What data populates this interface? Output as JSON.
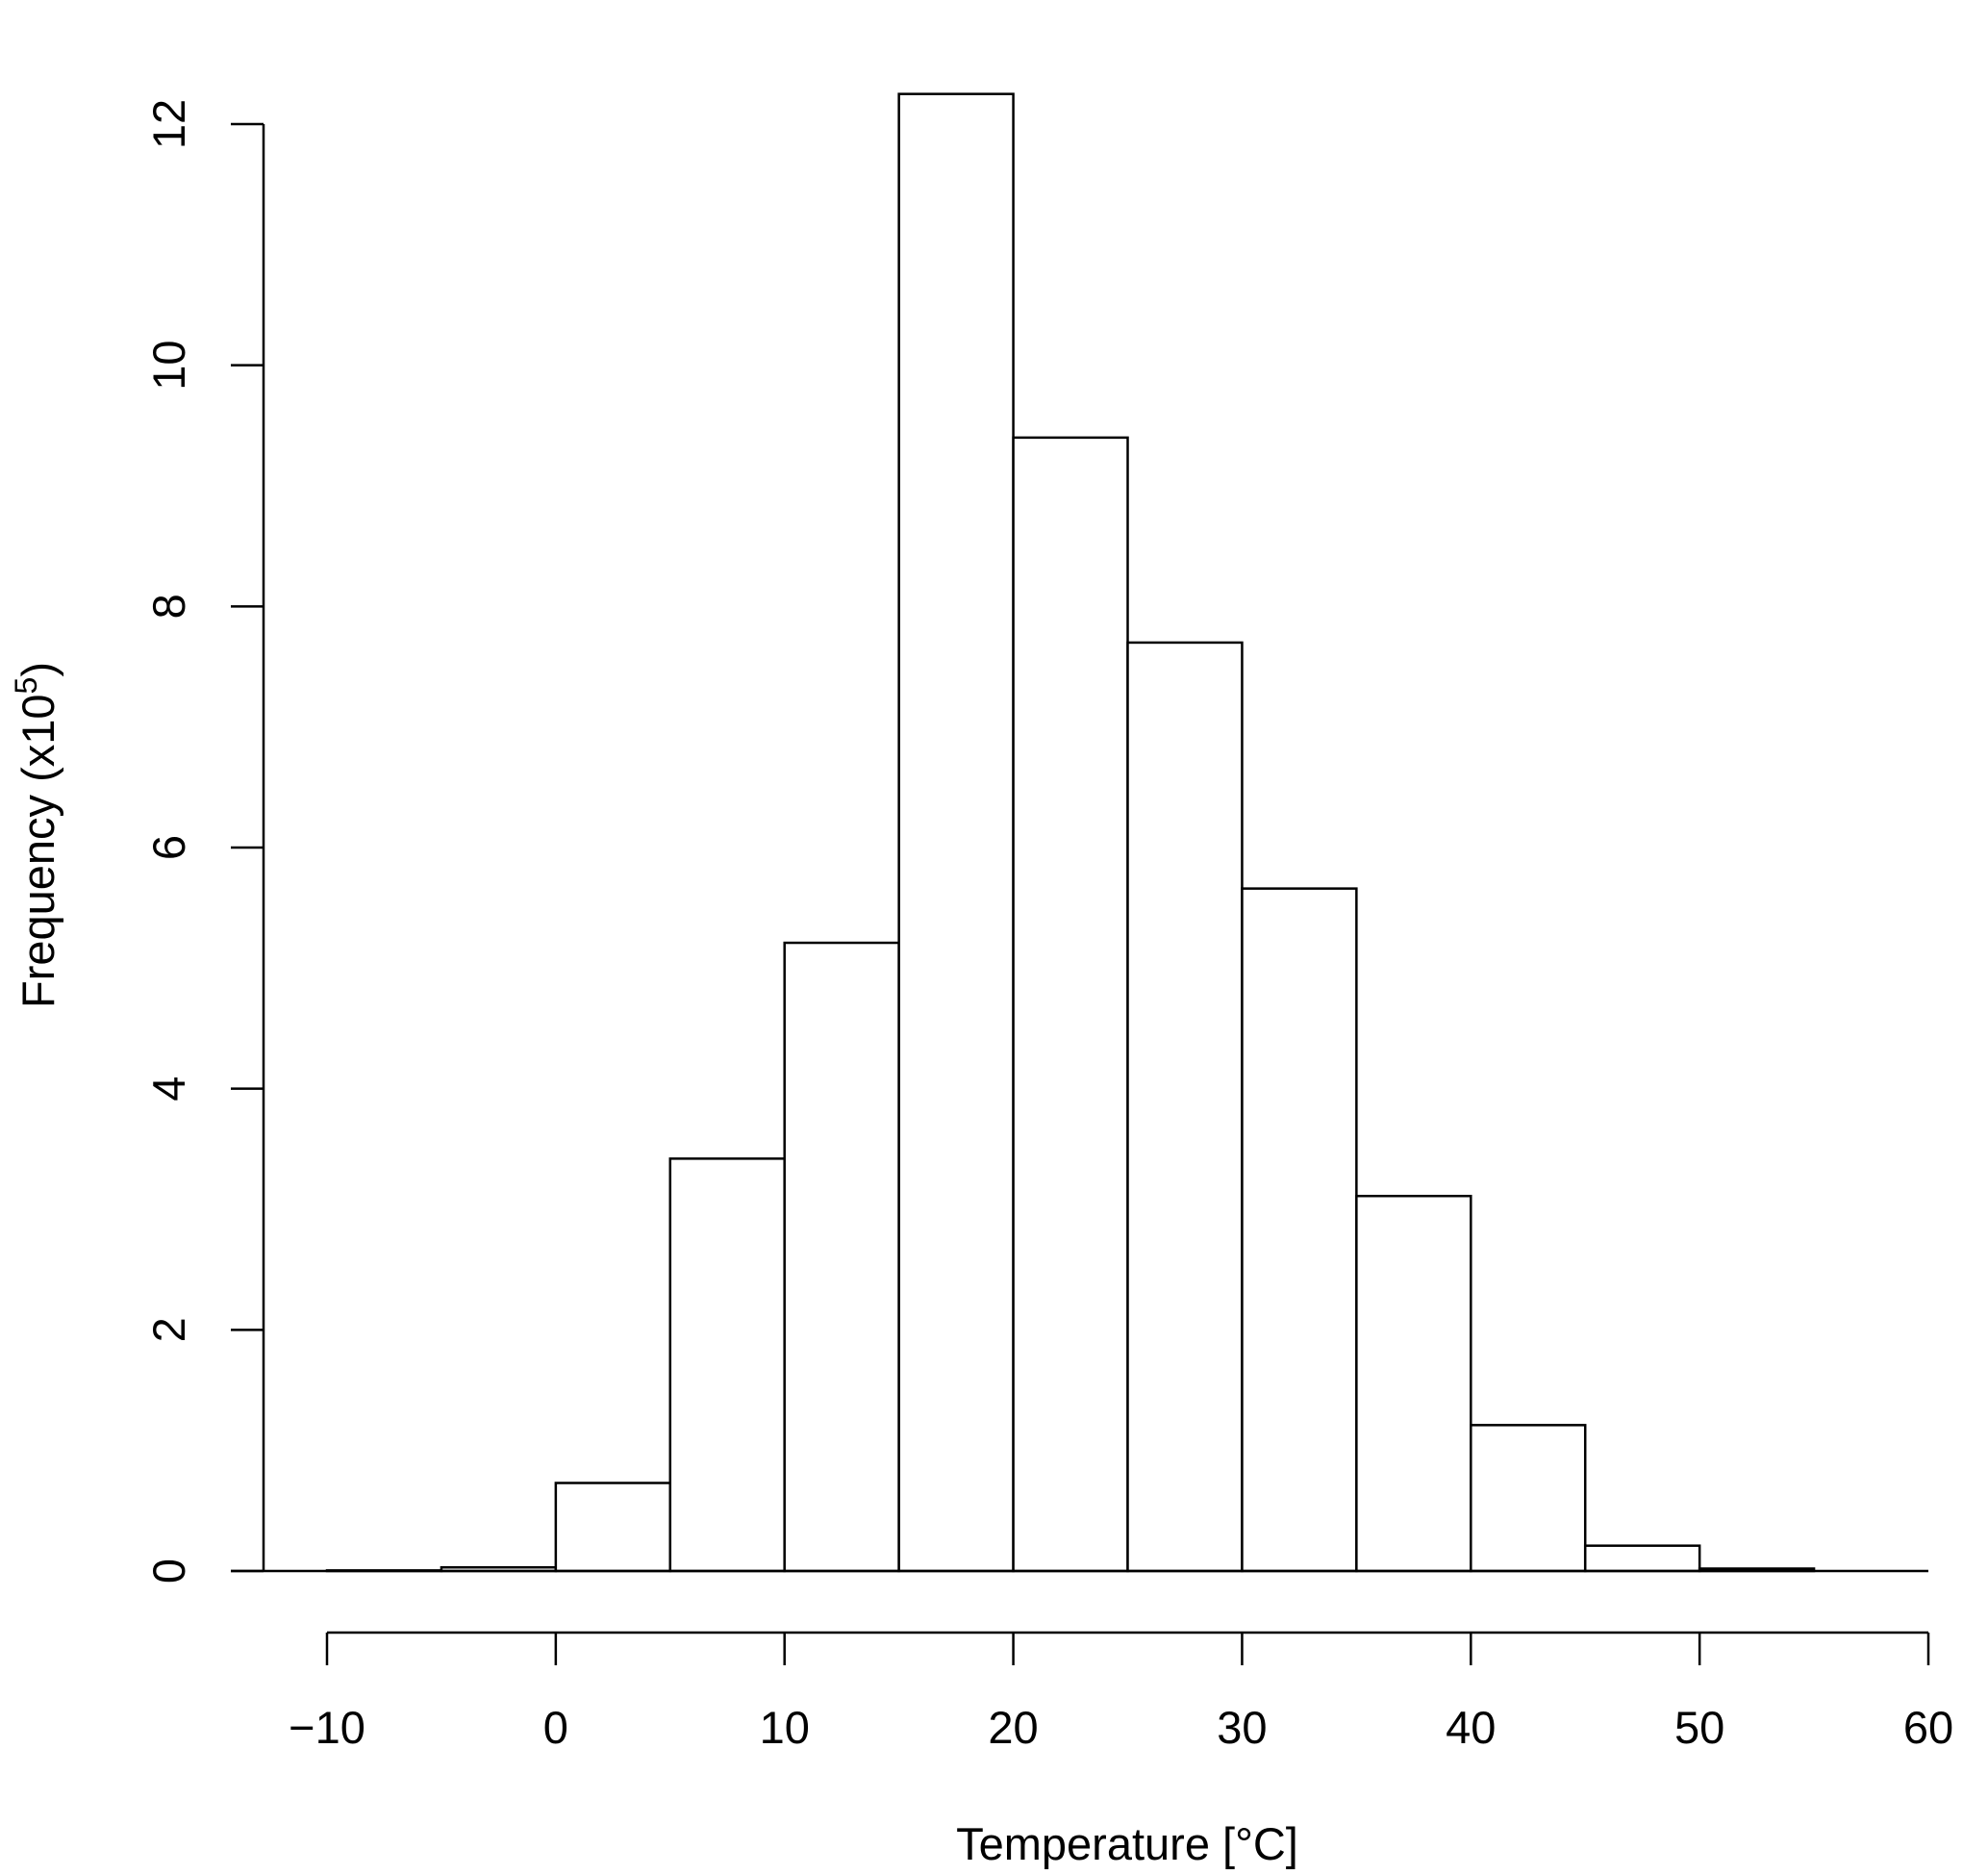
{
  "chart_data": {
    "type": "bar",
    "title": "",
    "xlabel": "Temperature [°C]",
    "ylabel": "Frequency (x10",
    "ylabel_superscript": "5",
    "ylabel_close": ")",
    "bin_edges": [
      -10,
      -5,
      0,
      5,
      10,
      15,
      20,
      25,
      30,
      35,
      40,
      45,
      50,
      55,
      60
    ],
    "values": [
      0.005,
      0.03,
      0.73,
      3.42,
      5.21,
      12.25,
      9.4,
      7.7,
      5.66,
      3.11,
      1.21,
      0.21,
      0.02,
      0.0
    ],
    "xlim": [
      -10,
      60
    ],
    "ylim": [
      0,
      12.3
    ],
    "x_ticks": [
      -10,
      0,
      10,
      20,
      30,
      40,
      50,
      60
    ],
    "x_tick_labels": [
      "−10",
      "0",
      "10",
      "20",
      "30",
      "40",
      "50",
      "60"
    ],
    "y_ticks": [
      0,
      2,
      4,
      6,
      8,
      10,
      12
    ],
    "y_tick_labels": [
      "0",
      "2",
      "4",
      "6",
      "8",
      "10",
      "12"
    ],
    "grid": false,
    "legend": "none",
    "colors": {
      "bar_fill": "#ffffff",
      "bar_stroke": "#000000",
      "axis": "#000000"
    }
  }
}
